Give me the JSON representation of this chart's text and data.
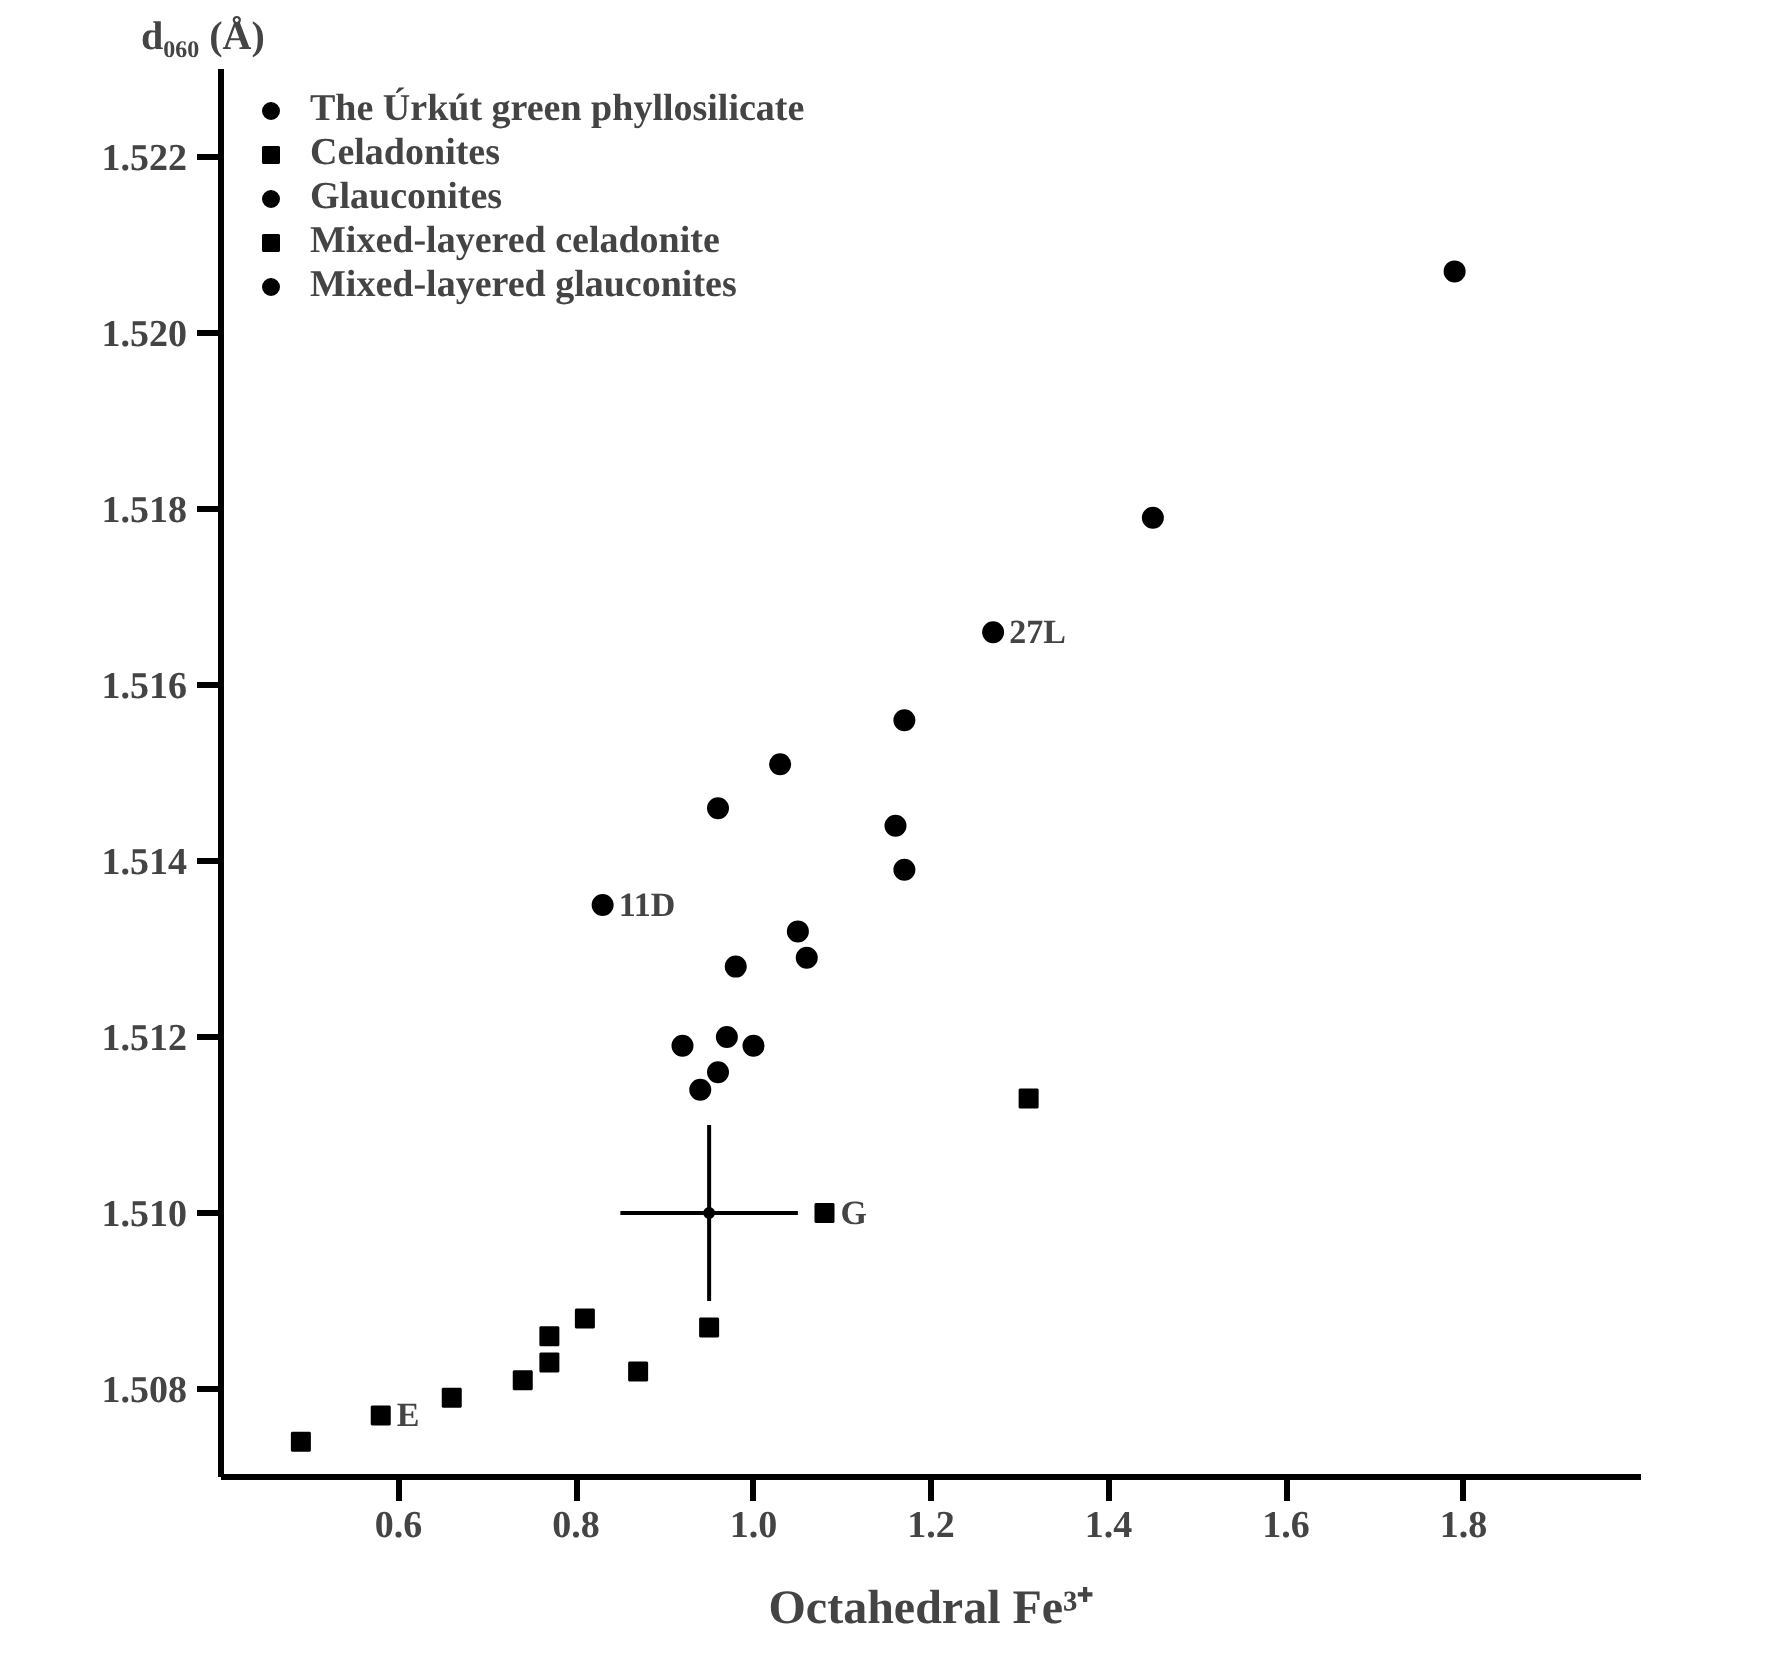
{
  "chart_data": {
    "type": "scatter",
    "xlabel": "Octahedral Fe³⁺",
    "ylabel": "d₀₆₀ (Å)",
    "xlim": [
      0.4,
      2.0
    ],
    "xticks": [
      0.6,
      0.8,
      {
        "value": 1.0,
        "label": "1.0"
      },
      1.2,
      1.4,
      1.6,
      1.8
    ],
    "ylim": [
      1.507,
      1.523
    ],
    "yticks": [
      1.508,
      {
        "value": 1.51,
        "label": "1.510"
      },
      1.512,
      1.514,
      1.516,
      1.518,
      {
        "value": 1.52,
        "label": "1.520"
      },
      1.522
    ],
    "grid": false,
    "legend": "top left",
    "series": [
      {
        "name": "The Úrkút green phyllosilicate",
        "color": "#000000",
        "marker": "circle",
        "x": [
          0.95
        ],
        "values": [
          1.51
        ],
        "errors": [
          0.001
        ],
        "xerrors": [
          0.1
        ]
      },
      {
        "name": "Celadonites",
        "color": "#000000",
        "marker": "square",
        "x": [
          0.49,
          0.58,
          0.66,
          0.74,
          0.77,
          0.77,
          0.81,
          0.87,
          0.95,
          1.08
        ],
        "values": [
          1.5074,
          1.5077,
          1.5079,
          1.5081,
          1.5083,
          1.5086,
          1.5088,
          1.5082,
          1.5087,
          1.51
        ]
      },
      {
        "name": "Glauconites",
        "color": "#000000",
        "marker": "circle",
        "x": [
          0.83,
          0.96,
          1.03,
          1.17,
          1.27,
          1.16,
          1.17,
          1.05,
          1.06,
          0.98,
          0.92,
          0.97,
          1.0,
          0.96,
          0.94
        ],
        "values": [
          1.5135,
          1.5146,
          1.5151,
          1.5156,
          1.5166,
          1.5144,
          1.5139,
          1.5132,
          1.5129,
          1.5128,
          1.5119,
          1.512,
          1.5119,
          1.5116,
          1.5114
        ]
      },
      {
        "name": "Mixed-layered celadonite",
        "color": "#000000",
        "marker": "square",
        "x": [
          1.31
        ],
        "values": [
          1.5113
        ]
      },
      {
        "name": "Mixed-layered glauconites",
        "color": "#000000",
        "marker": "circle",
        "x": [
          1.45,
          1.79
        ],
        "values": [
          1.5179,
          1.5207
        ]
      }
    ],
    "annotations": [
      {
        "text": "11D",
        "x": 0.83,
        "y": 1.5135
      },
      {
        "text": "27L",
        "x": 1.27,
        "y": 1.5166
      },
      {
        "text": "E",
        "x": 0.58,
        "y": 1.5077
      },
      {
        "text": "G",
        "x": 1.08,
        "y": 1.51
      }
    ]
  }
}
